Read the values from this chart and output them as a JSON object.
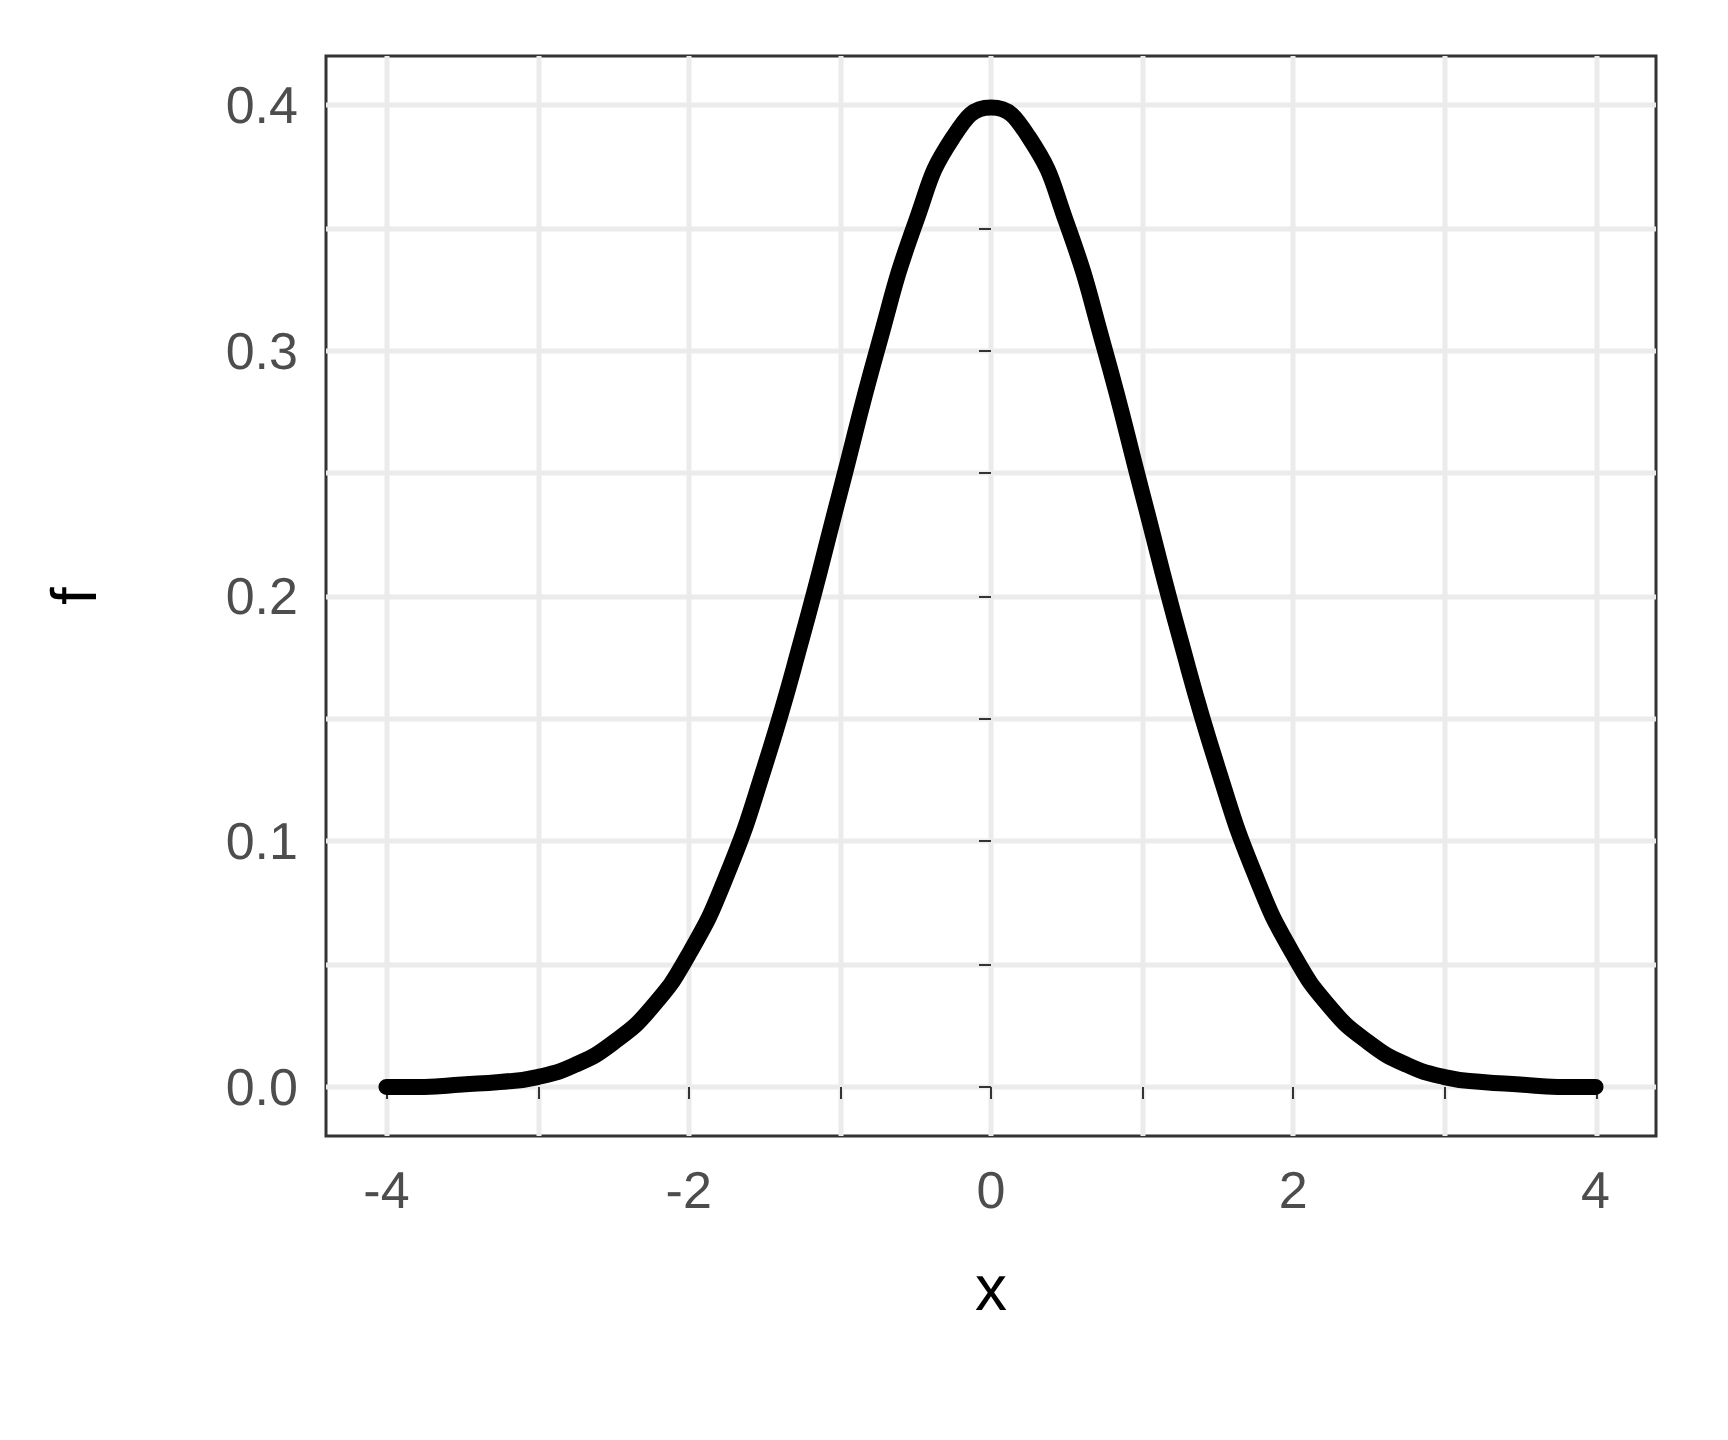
{
  "chart_data": {
    "type": "line",
    "xlabel": "x",
    "ylabel": "f",
    "x": [
      -4,
      -3.75,
      -3.5,
      -3.25,
      -3,
      -2.75,
      -2.5,
      -2.25,
      -2,
      -1.75,
      -1.5,
      -1.25,
      -1,
      -0.75,
      -0.5,
      -0.25,
      0,
      0.25,
      0.5,
      0.75,
      1,
      1.25,
      1.5,
      1.75,
      2,
      2.25,
      2.5,
      2.75,
      3,
      3.25,
      3.5,
      3.75,
      4
    ],
    "series": [
      {
        "color": "#000000",
        "values": [
          0.0,
          0.0,
          0.001,
          0.002,
          0.004,
          0.009,
          0.018,
          0.032,
          0.054,
          0.086,
          0.13,
          0.183,
          0.242,
          0.301,
          0.352,
          0.387,
          0.399,
          0.387,
          0.352,
          0.301,
          0.242,
          0.183,
          0.13,
          0.086,
          0.054,
          0.032,
          0.018,
          0.009,
          0.004,
          0.002,
          0.001,
          0.0,
          0.0
        ]
      }
    ],
    "xlim": [
      -4.4,
      4.4
    ],
    "ylim": [
      -0.02,
      0.42
    ],
    "xticks": [
      {
        "value": -4,
        "label": "-4"
      },
      {
        "value": -3,
        "label": null
      },
      {
        "value": -2,
        "label": "-2"
      },
      {
        "value": -1,
        "label": null
      },
      {
        "value": 0,
        "label": "0"
      },
      {
        "value": 1,
        "label": null
      },
      {
        "value": 2,
        "label": "2"
      },
      {
        "value": 3,
        "label": null
      },
      {
        "value": 4,
        "label": "4"
      }
    ],
    "yticks": [
      {
        "value": 0,
        "label": "0.0"
      },
      {
        "value": 0.05,
        "label": null
      },
      {
        "value": 0.1,
        "label": "0.1"
      },
      {
        "value": 0.15,
        "label": null
      },
      {
        "value": 0.2,
        "label": "0.2"
      },
      {
        "value": 0.25,
        "label": null
      },
      {
        "value": 0.3,
        "label": "0.3"
      },
      {
        "value": 0.35,
        "label": null
      },
      {
        "value": 0.4,
        "label": "0.4"
      }
    ],
    "grid": true,
    "line_style": "solid"
  }
}
